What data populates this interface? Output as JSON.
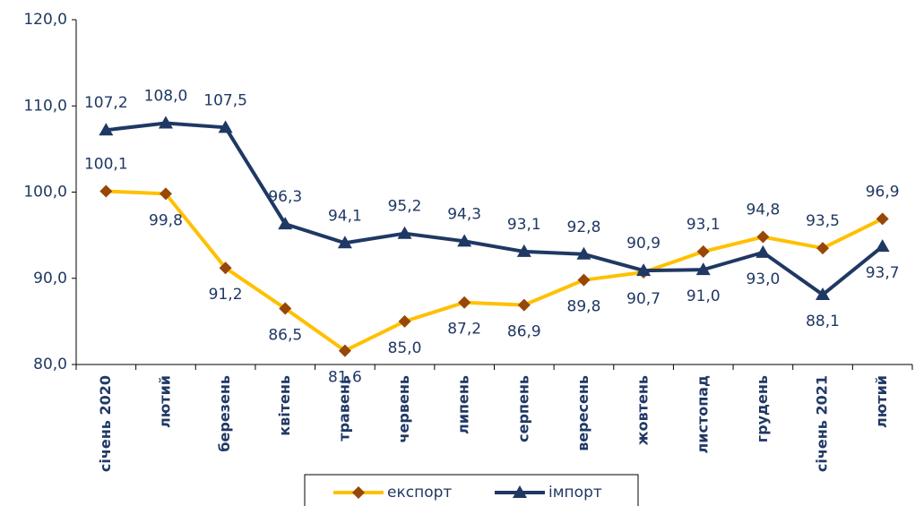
{
  "chart_data": {
    "type": "line",
    "categories": [
      "січень 2020",
      "лютий",
      "березень",
      "квітень",
      "травень",
      "червень",
      "липень",
      "серпень",
      "вересень",
      "жовтень",
      "листопад",
      "грудень",
      "січень 2021",
      "лютий"
    ],
    "series": [
      {
        "name": "експорт",
        "color": "#FFC000",
        "marker_color": "#974706",
        "marker": "diamond",
        "values": [
          100.1,
          99.8,
          91.2,
          86.5,
          81.6,
          85.0,
          87.2,
          86.9,
          89.8,
          90.7,
          93.1,
          94.8,
          93.5,
          96.9
        ],
        "value_labels": [
          "100,1",
          "99,8",
          "91,2",
          "86,5",
          "81,6",
          "85,0",
          "87,2",
          "86,9",
          "89,8",
          "90,7",
          "93,1",
          "94,8",
          "93,5",
          "96,9"
        ]
      },
      {
        "name": "імпорт",
        "color": "#1F3864",
        "marker_color": "#1F3864",
        "marker": "triangle",
        "values": [
          107.2,
          108.0,
          107.5,
          96.3,
          94.1,
          95.2,
          94.3,
          93.1,
          92.8,
          90.9,
          91.0,
          93.0,
          88.1,
          93.7
        ],
        "value_labels": [
          "107,2",
          "108,0",
          "107,5",
          "96,3",
          "94,1",
          "95,2",
          "94,3",
          "93,1",
          "92,8",
          "90,9",
          "91,0",
          "93,0",
          "88,1",
          "93,7"
        ]
      }
    ],
    "ylim": [
      80,
      120
    ],
    "yticks": [
      {
        "value": 80,
        "label": "80,0"
      },
      {
        "value": 90,
        "label": "90,0"
      },
      {
        "value": 100,
        "label": "100,0"
      },
      {
        "value": 110,
        "label": "110,0"
      },
      {
        "value": 120,
        "label": "120,0"
      }
    ],
    "grid": false,
    "legend": "bottom"
  }
}
